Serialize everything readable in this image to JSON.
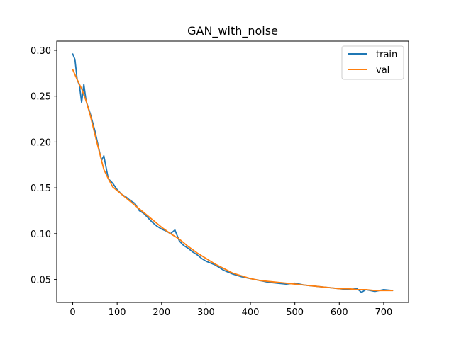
{
  "chart_data": {
    "type": "line",
    "title": "GAN_with_noise",
    "xlabel": "",
    "ylabel": "",
    "xlim": [
      -36,
      756
    ],
    "ylim": [
      0.025,
      0.31
    ],
    "x_ticks": [
      0,
      100,
      200,
      300,
      400,
      500,
      600,
      700
    ],
    "y_ticks": [
      0.05,
      0.1,
      0.15,
      0.2,
      0.25,
      0.3
    ],
    "y_tick_labels": [
      "0.05",
      "0.10",
      "0.15",
      "0.20",
      "0.25",
      "0.30"
    ],
    "grid": false,
    "legend_position": "top-right",
    "series": [
      {
        "name": "train",
        "color": "#1f77b4",
        "x": [
          0,
          5,
          10,
          15,
          20,
          25,
          30,
          40,
          50,
          60,
          65,
          70,
          80,
          90,
          100,
          110,
          120,
          130,
          140,
          150,
          160,
          170,
          180,
          190,
          200,
          210,
          220,
          230,
          240,
          250,
          260,
          270,
          280,
          290,
          300,
          320,
          340,
          360,
          380,
          400,
          420,
          440,
          460,
          480,
          500,
          520,
          540,
          560,
          580,
          600,
          620,
          640,
          650,
          660,
          680,
          700,
          720
        ],
        "y": [
          0.296,
          0.29,
          0.268,
          0.262,
          0.243,
          0.263,
          0.245,
          0.23,
          0.212,
          0.19,
          0.18,
          0.185,
          0.16,
          0.155,
          0.148,
          0.143,
          0.14,
          0.136,
          0.133,
          0.125,
          0.122,
          0.117,
          0.112,
          0.108,
          0.105,
          0.103,
          0.1,
          0.104,
          0.092,
          0.087,
          0.084,
          0.08,
          0.077,
          0.073,
          0.07,
          0.066,
          0.06,
          0.056,
          0.053,
          0.051,
          0.049,
          0.047,
          0.046,
          0.045,
          0.046,
          0.044,
          0.043,
          0.042,
          0.041,
          0.04,
          0.039,
          0.04,
          0.036,
          0.039,
          0.037,
          0.039,
          0.038
        ]
      },
      {
        "name": "val",
        "color": "#ff7f0e",
        "x": [
          0,
          10,
          20,
          30,
          40,
          50,
          60,
          70,
          80,
          90,
          100,
          120,
          140,
          160,
          180,
          200,
          220,
          240,
          260,
          280,
          300,
          320,
          340,
          360,
          380,
          400,
          420,
          440,
          460,
          480,
          500,
          520,
          540,
          560,
          580,
          600,
          620,
          640,
          660,
          680,
          700,
          720
        ],
        "y": [
          0.279,
          0.268,
          0.258,
          0.245,
          0.228,
          0.208,
          0.189,
          0.17,
          0.16,
          0.151,
          0.147,
          0.139,
          0.131,
          0.123,
          0.115,
          0.107,
          0.1,
          0.094,
          0.086,
          0.079,
          0.073,
          0.067,
          0.062,
          0.057,
          0.054,
          0.051,
          0.049,
          0.048,
          0.047,
          0.046,
          0.045,
          0.044,
          0.043,
          0.042,
          0.041,
          0.04,
          0.04,
          0.039,
          0.039,
          0.038,
          0.038,
          0.038
        ]
      }
    ]
  }
}
